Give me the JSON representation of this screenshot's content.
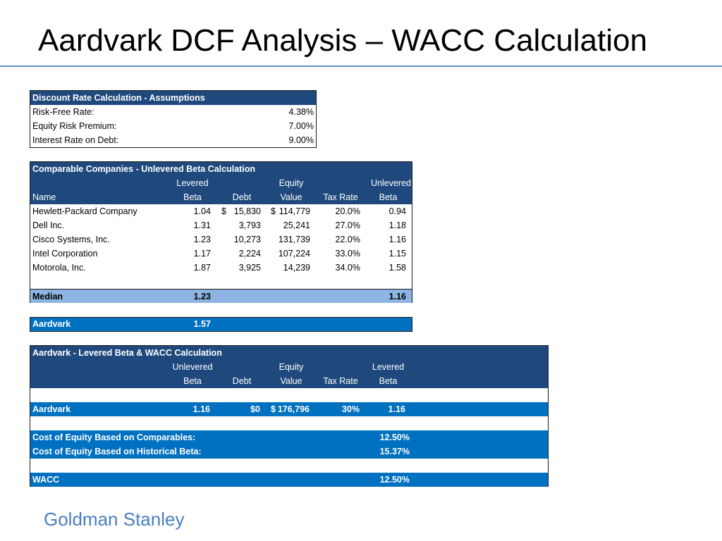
{
  "title": "Aardvark DCF Analysis – WACC Calculation",
  "footer": "Goldman Stanley",
  "assumptions": {
    "header": "Discount Rate Calculation - Assumptions",
    "rows": [
      {
        "label": "Risk-Free Rate:",
        "value": "4.38%"
      },
      {
        "label": "Equity Risk Premium:",
        "value": "7.00%"
      },
      {
        "label": "Interest Rate on Debt:",
        "value": "9.00%"
      }
    ]
  },
  "comparables": {
    "header": "Comparable Companies - Unlevered Beta Calculation",
    "col_top": {
      "levered": "Levered",
      "equity": "Equity",
      "unlevered": "Unlevered"
    },
    "col_bottom": {
      "name": "Name",
      "beta": "Beta",
      "debt": "Debt",
      "value": "Value",
      "tax": "Tax Rate",
      "ubeta": "Beta"
    },
    "rows": [
      {
        "name": "Hewlett-Packard Company",
        "beta": "1.04",
        "debt_sym": "$",
        "debt": "15,830",
        "value_sym": "$",
        "value": "114,779",
        "tax": "20.0%",
        "ubeta": "0.94"
      },
      {
        "name": "Dell Inc.",
        "beta": "1.31",
        "debt_sym": "",
        "debt": "3,793",
        "value_sym": "",
        "value": "25,241",
        "tax": "27.0%",
        "ubeta": "1.18"
      },
      {
        "name": "Cisco Systems, Inc.",
        "beta": "1.23",
        "debt_sym": "",
        "debt": "10,273",
        "value_sym": "",
        "value": "131,739",
        "tax": "22.0%",
        "ubeta": "1.16"
      },
      {
        "name": "Intel Corporation",
        "beta": "1.17",
        "debt_sym": "",
        "debt": "2,224",
        "value_sym": "",
        "value": "107,224",
        "tax": "33.0%",
        "ubeta": "1.15"
      },
      {
        "name": "Motorola, Inc.",
        "beta": "1.87",
        "debt_sym": "",
        "debt": "3,925",
        "value_sym": "",
        "value": "14,239",
        "tax": "34.0%",
        "ubeta": "1.58"
      }
    ],
    "median": {
      "label": "Median",
      "beta": "1.23",
      "ubeta": "1.16"
    }
  },
  "aardvark_beta": {
    "label": "Aardvark",
    "beta": "1.57"
  },
  "levered": {
    "header": "Aardvark - Levered Beta & WACC Calculation",
    "col_top": {
      "unlevered": "Unlevered",
      "equity": "Equity",
      "levered": "Levered"
    },
    "col_bottom": {
      "beta": "Beta",
      "debt": "Debt",
      "value": "Value",
      "tax": "Tax Rate",
      "lbeta": "Beta"
    },
    "aardvark": {
      "label": "Aardvark",
      "ubeta": "1.16",
      "debt": "$0",
      "value_sym": "$",
      "value": "176,796",
      "tax": "30%",
      "lbeta": "1.16"
    },
    "coe_comps": {
      "label": "Cost of Equity Based on Comparables:",
      "value": "12.50%"
    },
    "coe_hist": {
      "label": "Cost of Equity Based on Historical Beta:",
      "value": "15.37%"
    },
    "wacc": {
      "label": "WACC",
      "value": "12.50%"
    }
  }
}
